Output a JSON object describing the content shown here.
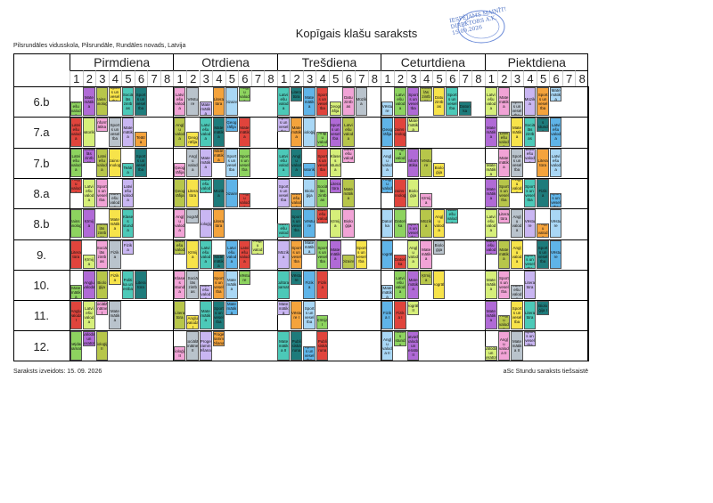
{
  "header": {
    "title": "Kopīgais klašu saraksts",
    "school": "Pilsrundāles vidusskola, Pilsrundāle, Rundāles novads, Latvija"
  },
  "stamp": {
    "text": "IESPĒJAMS MAINĪT! DIREKTORS A.K. 15.09.2026"
  },
  "days": [
    "Pirmdiena",
    "Otrdiena",
    "Trešdiena",
    "Ceturtdiena",
    "Piektdiena"
  ],
  "periods": [
    "1",
    "2",
    "3",
    "4",
    "5",
    "6",
    "7",
    "8"
  ],
  "classes": [
    "6.b",
    "7.a",
    "7.b",
    "8.a",
    "8.b",
    "9.",
    "10.",
    "11.",
    "12."
  ],
  "colors": {
    "green": "#8dd35f",
    "yellow": "#f7e34a",
    "blue": "#5fb4e8",
    "pink": "#f1a3d6",
    "orange": "#f4a33c",
    "purple": "#b06ad6",
    "teal": "#4cc9b8",
    "red": "#e0443c",
    "grey": "#b9c3cc",
    "lightblue": "#a9d7f5",
    "olive": "#b7c64a",
    "darkteal": "#1e7b7b",
    "lime": "#d6ef7a",
    "lavender": "#c9b6f2"
  },
  "timetable": [
    [
      [
        "Latvi ešu valod a",
        "Mate mātik a",
        "Dizains un tehnoloģija",
        "Sport s un vesel ība",
        "Sociā lās zinīb as",
        "Sport s un vesel ība",
        "",
        ""
      ],
      [
        "Latvi ešu valod a",
        "Vēstu re",
        "Mate mātik a",
        "Litera tūra",
        "Dizains",
        "Angļ u valod a",
        "",
        ""
      ],
      [
        "Latvi ešu valod a",
        "Litera tūra",
        "Mate mātik a",
        "Sport s un vesel ība",
        "Ģeogr āfija",
        "Datu zinīb as",
        "Mūzik a",
        ""
      ],
      [
        "Vēstu re",
        "Latvi ešu valod a",
        "Sport s un vesel ība",
        "Sociā lās zinīb as",
        "Datu zinīb as",
        "Sport s un vesel ība",
        "Datori ka",
        ""
      ],
      [
        "Latvi ešu valod a",
        "Mate mātik a",
        "Sport s un vesel ība",
        "Mūzik a",
        "Sport s un vesel ība",
        "Mate mātik a",
        "",
        ""
      ]
    ],
    [
      [
        "Latvi ešu valod a",
        "Datorika",
        "Inform ātika",
        "Sport s un vesel ība",
        "Mate mātik a",
        "Teātr a",
        "",
        ""
      ],
      [
        "Angļ u valod a",
        "Ģeog rāfija",
        "Latvi ešu valod a",
        "Mate mātik a",
        "Ģeog rāfija",
        "Mate mātik a",
        "",
        ""
      ],
      [
        "Sport s un vesel ība",
        "Mate mātik a",
        "Bioloģija",
        "Angļ u valod a",
        "Sport s un vesel ība",
        "Latvi ešu valod a",
        "",
        ""
      ],
      [
        "Ģeog rāfija",
        "Dizains un tehnoloģija",
        "Mate mātik a",
        "",
        "",
        "",
        "",
        ""
      ],
      [
        "Mate mātik a",
        "Latvi ešu valod a",
        "Mate mātik a",
        "Sociā lās zinīb as",
        "Klase s stund a",
        "Latvi ešu valod a",
        "",
        ""
      ]
    ],
    [
      [
        "Latvi ešu valod a",
        "Sociā lās zinīb as",
        "Latvi ešu valod a",
        "Dizains un tehnoloģija",
        "Teātr a",
        "Sport s un vesel ība",
        "",
        ""
      ],
      [
        "Ģeog rāfija",
        "Angļ u valod a",
        "Mate mātik a",
        "Mate mātik a",
        "Sport s un vesel ība",
        "Sport s un vesel ība",
        "",
        ""
      ],
      [
        "Latvi ešu valod a",
        "Angļ u valod a",
        "Datorika",
        "Sport s un vesel ība",
        "Klase s stund a",
        "Latvi ešu valod a",
        "",
        ""
      ],
      [
        "Angļ u valod a",
        "Angļ u valod a",
        "Inform ātika",
        "Vēstu re",
        "Biolo ģija",
        "",
        "",
        ""
      ],
      [
        "Mate mātik a",
        "Mate mātik a",
        "Sport s un vesel ība",
        "Latvi ešu valod a",
        "Litera tūra",
        "Latvi ešu valod a",
        "",
        ""
      ]
    ],
    [
      [
        "Angļ u valod a",
        "Latvi ešu valod a",
        "Sport s un vesel ība",
        "Latvi ešu valod a",
        "Latvi ešu valod a",
        "",
        "",
        ""
      ],
      [
        "Ģeog rāfija",
        "Litera tūra",
        "Latvi ešu valod a",
        "Mūzik a",
        "Dizains",
        "Angļ u valod a",
        "",
        ""
      ],
      [
        "Sport s un vesel ība",
        "Latvi ešu valod a",
        "Biolo ģija",
        "Sociā lās zinīb as",
        "Litera tūra",
        "Mate mātik a",
        "",
        ""
      ],
      [
        "Angļ u valod a",
        "Dizains un tehnoloģija",
        "Biolo ģija",
        "Ķīmij a",
        "",
        "",
        "",
        ""
      ],
      [
        "Mate mātik a",
        "Sport s un vesel ība",
        "Angļ u valod a",
        "Sport s un vesel ība",
        "Fizik a",
        "Sport s un vesel ība",
        "",
        ""
      ]
    ],
    [
      [
        "Dizains un tehnoloģija",
        "Ķīmij a",
        "Sociā lās zinīb as",
        "Mate mātik a",
        "Klase s stund a",
        "",
        "",
        ""
      ],
      [
        "Angļ u valod a",
        "Ģeogrāfija",
        "Bioloģija",
        "Litera tūra",
        "",
        "",
        "",
        ""
      ],
      [
        "Latvi ešu valod a",
        "Sport s un vesel ība",
        "Vēstu re",
        "Latvi ešu valod a",
        "Ķīmij a",
        "Biolo ģija",
        "",
        ""
      ],
      [
        "Datori ka",
        "Datori ka",
        "Sport s un vesel ība",
        "Mūzik a",
        "Angļ u valod a",
        "Latvi ešu valod a",
        "",
        ""
      ],
      [
        "Latvi ešu valod a",
        "Litera tūra",
        "Angļ u valod a",
        "Vēstu re",
        "Angļ u valod a",
        "Vēstu re",
        "",
        ""
      ]
    ],
    [
      [
        "Litera tūra",
        "Ķīmij a",
        "Sociā lās zinīb as",
        "Fizik a",
        "Fizik a",
        "",
        "",
        ""
      ],
      [
        "Latvi ešu valod a",
        "Ķīmij a",
        "Latvi ešu valod a",
        "Mate mātik a",
        "Latvi ešu valod a",
        "Latvi ešu valod a",
        "Angļ u valod a",
        ""
      ],
      [
        "Mūzik a",
        "Sport s un vesel ība",
        "Mate mātik a",
        "Sport s un vesel ība",
        "Mate mātik a",
        "Dizains",
        "Sport s un vesel ība",
        ""
      ],
      [
        "Ģeogrāfija",
        "Datori ka",
        "Angļ u valod a",
        "Mate mātik a",
        "Biolo ģija",
        "",
        "",
        ""
      ],
      [
        "Latvi ešu valod a",
        "Mate mātik a",
        "Angļ u valod a",
        "Sport s un vesel ība",
        "Sport s un vesel ība",
        "Vēstu re",
        "",
        ""
      ]
    ],
    [
      [
        "Mate mātik a",
        "Angļu valoda",
        "Biolo ģija",
        "Fizik a",
        "Politi ka un tiesības",
        "Litera tūra",
        "",
        ""
      ],
      [
        "Klase s stund a",
        "Sociā lās zinīb as",
        "Latvi ešu valod a",
        "Sport s un vesel ība",
        "Mate mātik a",
        "Vēstu re",
        "",
        ""
      ],
      [
        "Kultūras pamati",
        "Vēstu re",
        "Fizik a",
        "Fizik a",
        "",
        "",
        "",
        ""
      ],
      [
        "Mate mātik a",
        "Latvi ešu valod a",
        "Mate mātik a",
        "Ķīmij a",
        "Ģeogrāfija",
        "",
        "",
        ""
      ],
      [
        "Mate mātik a",
        "Sport s un vesel ība",
        "Latvi ešu valod a",
        "Litera tūra",
        "",
        "",
        "",
        ""
      ]
    ],
    [
      [
        "Angļu valoda I",
        "Latvi ešu valod a",
        "Sociālās zinātnes I",
        "Mate mātik a",
        "",
        "",
        "",
        ""
      ],
      [
        "Litera tūra",
        "Angļu valoda I",
        "Mate mātik a",
        "Sport s un vesel ība",
        "Mate mātik a",
        "",
        "",
        ""
      ],
      [
        "Mate mātik a",
        "Vēstu re I",
        "Sport s un vesel ība",
        "Ķīmija I",
        "",
        "",
        "",
        ""
      ],
      [
        "Fizik a I",
        "Fizik a I",
        "Ģeogrāfija II",
        "",
        "",
        "",
        "",
        ""
      ],
      [
        "Mate mātik a",
        "Angļ u valod a",
        "Sport s un vesel ība",
        "Litera tūra",
        "Biolo ģija I",
        "",
        "",
        ""
      ]
    ],
    [
      [
        "Uzņēmējdarbības pamati",
        "Latviešu valoda un literatūra II",
        "Bioloģija II",
        "",
        "",
        "",
        "",
        ""
      ],
      [
        "Bioloģija II",
        "Sociālās zinātnes II",
        "Proge ramm ēšana",
        "Proge ramm ēšana",
        "",
        "",
        "",
        ""
      ],
      [
        "Mate mātik a II",
        "Publi siskā runa",
        "Sport s un vesel ība",
        "Publi siskā runa",
        "",
        "",
        "",
        ""
      ],
      [
        "Angļ u valod a II",
        "Klase s stund a",
        "Latviešu valoda un literatūra II",
        "",
        "",
        "",
        "",
        ""
      ],
      [
        "Latviešu valoda un literatūra II",
        "Angļ u valod a II",
        "Mate mātik a II",
        "Sport s un vesel ība",
        "",
        "",
        "",
        ""
      ]
    ]
  ],
  "footer": {
    "created": "Saraksts izveidots: 15. 09. 2026",
    "software": "aSc Stundu saraksts tiešsaistē"
  }
}
